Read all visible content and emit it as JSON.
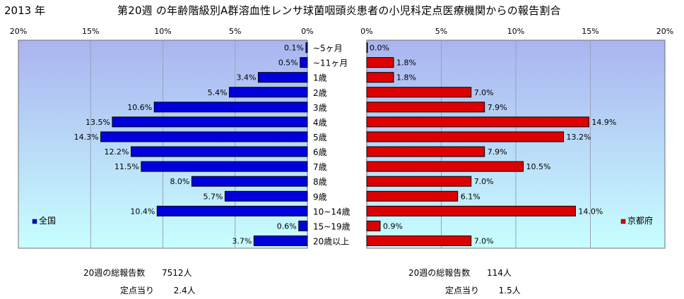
{
  "header": {
    "year": "2013 年",
    "title": "第20週 の年齢階級別A群溶血性レンサ球菌咽頭炎患者の小児科定点医療機関からの報告割合"
  },
  "colors": {
    "plot_background_top": "#aab4f0",
    "plot_background_bottom": "#c8ffff",
    "national_bar": "#0000dd",
    "kyoto_bar": "#dd0000",
    "grid": "#9aa0b8"
  },
  "chart_data": [
    {
      "type": "bar",
      "orientation": "horizontal",
      "direction": "right-to-left",
      "xlim": [
        0,
        20
      ],
      "ticks": [
        "20%",
        "15%",
        "10%",
        "5%",
        "0%"
      ],
      "categories": [
        "~5ヶ月",
        "~11ヶ月",
        "1歳",
        "2歳",
        "3歳",
        "4歳",
        "5歳",
        "6歳",
        "7歳",
        "8歳",
        "9歳",
        "10~14歳",
        "15~19歳",
        "20歳以上"
      ],
      "series": [
        {
          "name": "全国",
          "values": [
            0.1,
            0.5,
            3.4,
            5.4,
            10.6,
            13.5,
            14.3,
            12.2,
            11.5,
            8.0,
            5.7,
            10.4,
            0.6,
            3.7
          ],
          "labels": [
            "0.1%",
            "0.5%",
            "3.4%",
            "5.4%",
            "10.6%",
            "13.5%",
            "14.3%",
            "12.2%",
            "11.5%",
            "8.0%",
            "5.7%",
            "10.4%",
            "0.6%",
            "3.7%"
          ]
        }
      ],
      "legend": "bottom-left",
      "grid": true
    },
    {
      "type": "bar",
      "orientation": "horizontal",
      "direction": "left-to-right",
      "xlim": [
        0,
        20
      ],
      "ticks": [
        "0%",
        "5%",
        "10%",
        "15%",
        "20%"
      ],
      "categories": [
        "~5ヶ月",
        "~11ヶ月",
        "1歳",
        "2歳",
        "3歳",
        "4歳",
        "5歳",
        "6歳",
        "7歳",
        "8歳",
        "9歳",
        "10~14歳",
        "15~19歳",
        "20歳以上"
      ],
      "series": [
        {
          "name": "京都府",
          "values": [
            0.0,
            1.8,
            1.8,
            7.0,
            7.9,
            14.9,
            13.2,
            7.9,
            10.5,
            7.0,
            6.1,
            14.0,
            0.9,
            7.0
          ],
          "labels": [
            "0.0%",
            "1.8%",
            "1.8%",
            "7.0%",
            "7.9%",
            "14.9%",
            "13.2%",
            "7.9%",
            "10.5%",
            "7.0%",
            "6.1%",
            "14.0%",
            "0.9%",
            "7.0%"
          ]
        }
      ],
      "legend": "bottom-right",
      "grid": true
    }
  ],
  "summary": {
    "national": {
      "total_label": "20週の総報告数",
      "total_value": "7512人",
      "per_site_label": "定点当り",
      "per_site_value": "2.4人"
    },
    "kyoto": {
      "total_label": "20週の総報告数",
      "total_value": "114人",
      "per_site_label": "定点当り",
      "per_site_value": "1.5人"
    }
  }
}
